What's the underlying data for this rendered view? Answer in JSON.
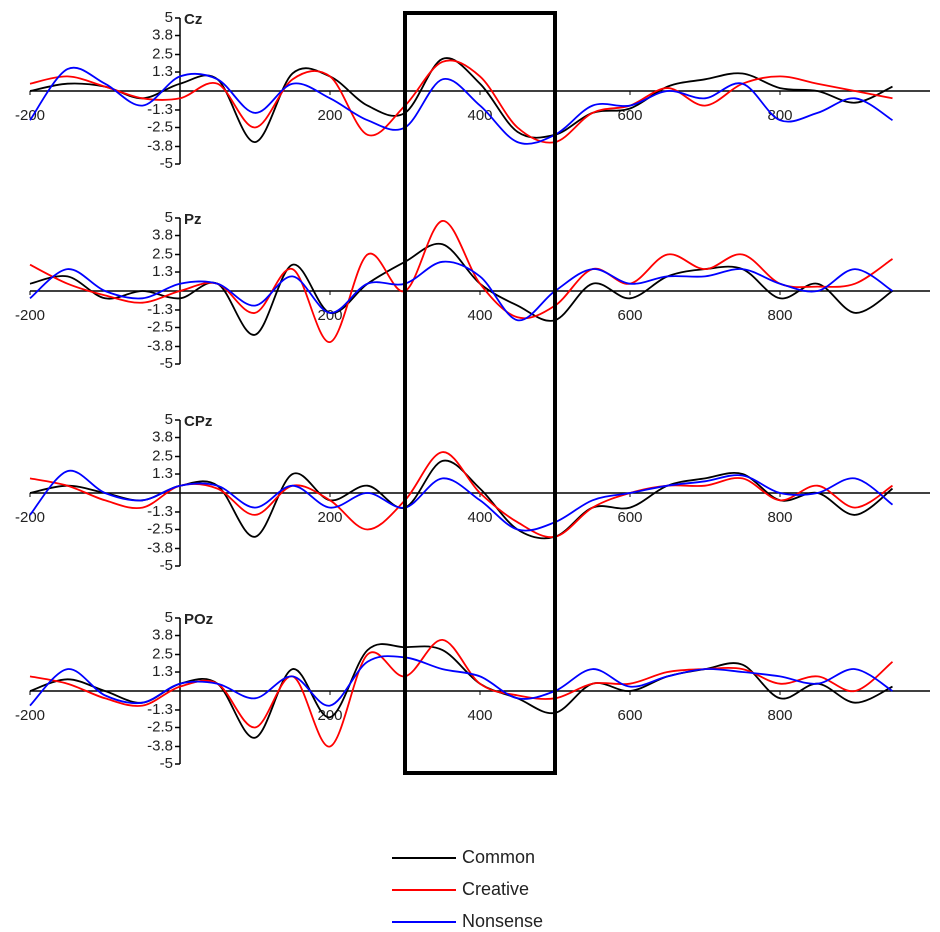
{
  "highlight_window": [
    300,
    500
  ],
  "chart_data": [
    {
      "type": "line",
      "title": "Cz",
      "x": [
        -200,
        -150,
        -100,
        -50,
        0,
        50,
        100,
        150,
        200,
        250,
        300,
        350,
        400,
        450,
        500,
        550,
        600,
        650,
        700,
        750,
        800,
        850,
        900,
        950
      ],
      "series": [
        {
          "name": "Common",
          "color": "#000000",
          "values": [
            0,
            0.5,
            0.3,
            -0.5,
            0.5,
            0.8,
            -3.5,
            1.2,
            1,
            -1,
            -1.5,
            2.2,
            0.5,
            -2.8,
            -3,
            -1.5,
            -1.2,
            0.3,
            0.8,
            1.2,
            0.2,
            0,
            -0.8,
            0.3
          ]
        },
        {
          "name": "Creative",
          "color": "#ff0000",
          "values": [
            0.5,
            1,
            0.3,
            -0.5,
            -0.5,
            0.5,
            -2.5,
            0.8,
            1,
            -3,
            -1,
            2,
            1,
            -2.5,
            -3.5,
            -1.5,
            -1,
            0.2,
            -1,
            0.5,
            1,
            0.5,
            0,
            -0.5
          ]
        },
        {
          "name": "Nonsense",
          "color": "#0000ff",
          "values": [
            -2,
            1.5,
            0.5,
            -1,
            1,
            0.8,
            -1.5,
            0.5,
            -0.5,
            -2,
            -2.5,
            0.8,
            -1,
            -3.5,
            -3,
            -1,
            -1,
            0,
            -0.5,
            0.5,
            -2,
            -1.5,
            -0.5,
            -2
          ]
        }
      ],
      "xlim": [
        -200,
        1000
      ],
      "ylim": [
        -5,
        5
      ],
      "xticks": [
        -200,
        200,
        400,
        600,
        800
      ],
      "yticks": [
        5,
        3.8,
        2.5,
        1.3,
        -1.3,
        -2.5,
        -3.8,
        -5
      ]
    },
    {
      "type": "line",
      "title": "Pz",
      "x": [
        -200,
        -150,
        -100,
        -50,
        0,
        50,
        100,
        150,
        200,
        250,
        300,
        350,
        400,
        450,
        500,
        550,
        600,
        650,
        700,
        750,
        800,
        850,
        900,
        950
      ],
      "series": [
        {
          "color": "#000000",
          "values": [
            0.5,
            1,
            -0.5,
            0,
            -0.5,
            0.5,
            -3,
            1.8,
            -1.5,
            0.5,
            2,
            3.2,
            0.5,
            -1,
            -2,
            0.5,
            -0.5,
            1,
            1.5,
            1.5,
            -0.5,
            0.5,
            -1.5,
            0
          ]
        },
        {
          "color": "#ff0000",
          "values": [
            1.8,
            0.5,
            -0.3,
            -0.8,
            0,
            0.5,
            -1.5,
            1.5,
            -3.5,
            2.5,
            0,
            4.8,
            0.5,
            -1.8,
            -1,
            1.5,
            0.5,
            2.5,
            1.5,
            2.5,
            0.5,
            0.3,
            0.5,
            2.2
          ]
        },
        {
          "color": "#0000ff",
          "values": [
            -0.5,
            1.5,
            0,
            -0.5,
            0.5,
            0.5,
            -1,
            1,
            -1.5,
            0.5,
            0.5,
            2,
            1,
            -2,
            0,
            1.5,
            0.5,
            1,
            1,
            1.5,
            0.5,
            0,
            1.5,
            0
          ]
        }
      ],
      "xlim": [
        -200,
        1000
      ],
      "ylim": [
        -5,
        5
      ],
      "xticks": [
        -200,
        200,
        400,
        600,
        800
      ],
      "yticks": [
        5,
        3.8,
        2.5,
        1.3,
        -1.3,
        -2.5,
        -3.8,
        -5
      ]
    },
    {
      "type": "line",
      "title": "CPz",
      "x": [
        -200,
        -150,
        -100,
        -50,
        0,
        50,
        100,
        150,
        200,
        250,
        300,
        350,
        400,
        450,
        500,
        550,
        600,
        650,
        700,
        750,
        800,
        850,
        900,
        950
      ],
      "series": [
        {
          "color": "#000000",
          "values": [
            0,
            0.5,
            0,
            -0.5,
            0.5,
            0.5,
            -3,
            1.3,
            -0.5,
            0.5,
            -1,
            2.2,
            0.3,
            -2.5,
            -3,
            -1,
            -1,
            0.5,
            1,
            1.3,
            -0.5,
            0,
            -1.5,
            0.3
          ]
        },
        {
          "color": "#ff0000",
          "values": [
            1,
            0.5,
            -0.5,
            -1,
            0.5,
            0.3,
            -1.5,
            0.5,
            -0.5,
            -2.5,
            -0.5,
            2.8,
            0,
            -2,
            -3,
            -1,
            0,
            0.5,
            0.5,
            1,
            -0.5,
            0.5,
            -1,
            0.5
          ]
        },
        {
          "color": "#0000ff",
          "values": [
            -1.5,
            1.5,
            0,
            -0.5,
            0.5,
            0.5,
            -1,
            0.5,
            -1,
            0,
            -1,
            1,
            -0.5,
            -2.5,
            -2,
            -0.5,
            0,
            0.5,
            0.8,
            1.2,
            0,
            0,
            1,
            -0.8
          ]
        }
      ],
      "xlim": [
        -200,
        1000
      ],
      "ylim": [
        -5,
        5
      ],
      "xticks": [
        -200,
        200,
        400,
        600,
        800
      ],
      "yticks": [
        5,
        3.8,
        2.5,
        1.3,
        -1.3,
        -2.5,
        -3.8,
        -5
      ]
    },
    {
      "type": "line",
      "title": "POz",
      "x": [
        -200,
        -150,
        -100,
        -50,
        0,
        50,
        100,
        150,
        200,
        250,
        300,
        350,
        400,
        450,
        500,
        550,
        600,
        650,
        700,
        750,
        800,
        850,
        900,
        950
      ],
      "series": [
        {
          "color": "#000000",
          "values": [
            0,
            0.8,
            0,
            -0.8,
            0.5,
            0.5,
            -3.2,
            1.5,
            -1.8,
            2.8,
            3,
            2.8,
            0.5,
            -0.5,
            -1.5,
            0.5,
            0,
            1,
            1.5,
            1.8,
            -0.5,
            0.5,
            -0.8,
            0.3
          ]
        },
        {
          "color": "#ff0000",
          "values": [
            1,
            0.5,
            -0.5,
            -1,
            0.3,
            0.5,
            -2.5,
            1,
            -3.8,
            2.5,
            1,
            3.5,
            0.5,
            -0.3,
            -0.5,
            0.5,
            0.5,
            1.3,
            1.5,
            1.5,
            0.5,
            1,
            0,
            2
          ]
        },
        {
          "color": "#0000ff",
          "values": [
            -1,
            1.5,
            -0.3,
            -0.8,
            0.5,
            0.5,
            -0.5,
            1,
            -1,
            2,
            2.3,
            1.5,
            1,
            -0.5,
            0,
            1.5,
            0.3,
            1,
            1.5,
            1.3,
            1,
            0.5,
            1.5,
            0
          ]
        }
      ],
      "xlim": [
        -200,
        1000
      ],
      "ylim": [
        -5,
        5
      ],
      "xticks": [
        -200,
        200,
        400,
        600,
        800
      ],
      "yticks": [
        5,
        3.8,
        2.5,
        1.3,
        -1.3,
        -2.5,
        -3.8,
        -5
      ]
    }
  ]
}
